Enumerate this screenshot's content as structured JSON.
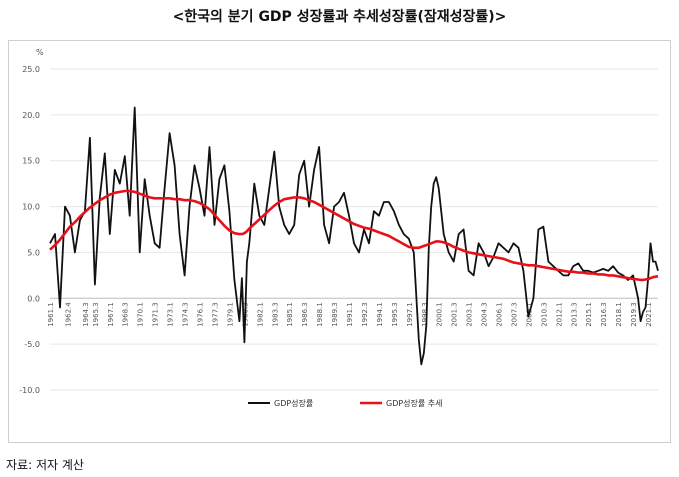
{
  "title": "<한국의 분기 GDP 성장률과 추세성장률(잠재성장률)>",
  "source": "자료: 저자 계산",
  "chart_data": {
    "type": "line",
    "title": "<한국의 분기 GDP 성장률과 추세성장률(잠재성장률)>",
    "ylabel": "%",
    "xlabel": "",
    "ylim": [
      -10,
      25
    ],
    "yticks": [
      "25.0",
      "20.0",
      "15.0",
      "10.0",
      "5.0",
      "0.0",
      "-5.0",
      "-10.0"
    ],
    "grid": true,
    "legend": "bottom-center",
    "x_tick_labels": [
      "1961.1",
      "1962.4",
      "1964.3",
      "1965.3",
      "1967.1",
      "1968.3",
      "1970.1",
      "1971.3",
      "1973.1",
      "1974.3",
      "1976.1",
      "1977.3",
      "1979.1",
      "1980.3",
      "1982.1",
      "1983.3",
      "1985.1",
      "1986.3",
      "1988.1",
      "1989.3",
      "1991.1",
      "1992.3",
      "1994.1",
      "1995.3",
      "1997.1",
      "1998.3",
      "2000.1",
      "2001.3",
      "2003.1",
      "2004.3",
      "2006.1",
      "2007.3",
      "2009.1",
      "2010.3",
      "2012.1",
      "2013.3",
      "2015.1",
      "2016.3",
      "2018.1",
      "2019.3",
      "2021.1"
    ],
    "x": [
      1961.0,
      1961.5,
      1962.0,
      1962.5,
      1963.0,
      1963.5,
      1964.0,
      1964.5,
      1965.0,
      1965.5,
      1966.0,
      1966.5,
      1967.0,
      1967.5,
      1968.0,
      1968.5,
      1969.0,
      1969.5,
      1970.0,
      1970.5,
      1971.0,
      1971.5,
      1972.0,
      1972.5,
      1973.0,
      1973.5,
      1974.0,
      1974.5,
      1975.0,
      1975.5,
      1976.0,
      1976.5,
      1977.0,
      1977.5,
      1978.0,
      1978.5,
      1979.0,
      1979.5,
      1980.0,
      1980.25,
      1980.5,
      1980.75,
      1981.0,
      1981.5,
      1982.0,
      1982.5,
      1983.0,
      1983.5,
      1984.0,
      1984.5,
      1985.0,
      1985.5,
      1986.0,
      1986.5,
      1987.0,
      1987.5,
      1988.0,
      1988.5,
      1989.0,
      1989.5,
      1990.0,
      1990.5,
      1991.0,
      1991.5,
      1992.0,
      1992.5,
      1993.0,
      1993.5,
      1994.0,
      1994.5,
      1995.0,
      1995.5,
      1996.0,
      1996.5,
      1997.0,
      1997.5,
      1998.0,
      1998.25,
      1998.5,
      1998.75,
      1999.0,
      1999.25,
      1999.5,
      1999.75,
      2000.0,
      2000.5,
      2001.0,
      2001.5,
      2002.0,
      2002.5,
      2003.0,
      2003.5,
      2004.0,
      2004.5,
      2005.0,
      2005.5,
      2006.0,
      2006.5,
      2007.0,
      2007.5,
      2008.0,
      2008.5,
      2009.0,
      2009.5,
      2010.0,
      2010.5,
      2011.0,
      2011.5,
      2012.0,
      2012.5,
      2013.0,
      2013.5,
      2014.0,
      2014.5,
      2015.0,
      2015.5,
      2016.0,
      2016.5,
      2017.0,
      2017.5,
      2018.0,
      2018.5,
      2019.0,
      2019.5,
      2020.0,
      2020.25,
      2020.5,
      2020.75,
      2021.0,
      2021.25,
      2021.5,
      2021.75,
      2022.0
    ],
    "series": [
      {
        "name": "GDP성장률",
        "color": "#111111",
        "values": [
          6.0,
          7.0,
          -1.0,
          10.0,
          9.0,
          5.0,
          8.5,
          9.5,
          17.5,
          1.5,
          11.0,
          15.8,
          7.0,
          14.0,
          12.5,
          15.5,
          9.0,
          20.8,
          5.0,
          13.0,
          9.0,
          6.0,
          5.5,
          12.0,
          18.0,
          14.5,
          7.0,
          2.5,
          10.0,
          14.5,
          12.0,
          9.0,
          16.5,
          8.0,
          13.0,
          14.5,
          9.5,
          2.0,
          -2.5,
          2.2,
          -4.8,
          4.0,
          6.0,
          12.5,
          9.0,
          8.0,
          12.0,
          16.0,
          10.0,
          8.0,
          7.0,
          8.0,
          13.5,
          15.0,
          10.0,
          14.0,
          16.5,
          8.0,
          6.0,
          10.0,
          10.5,
          11.5,
          9.0,
          6.0,
          5.0,
          7.5,
          6.0,
          9.5,
          9.0,
          10.5,
          10.5,
          9.5,
          8.0,
          7.0,
          6.5,
          5.0,
          -4.5,
          -7.2,
          -6.0,
          -3.0,
          5.5,
          10.0,
          12.5,
          13.2,
          12.0,
          7.0,
          5.0,
          4.0,
          7.0,
          7.5,
          3.0,
          2.5,
          6.0,
          5.0,
          3.5,
          4.5,
          6.0,
          5.5,
          5.0,
          6.0,
          5.5,
          3.0,
          -2.0,
          0.0,
          7.5,
          7.8,
          4.0,
          3.5,
          3.0,
          2.5,
          2.5,
          3.5,
          3.8,
          3.0,
          3.0,
          2.8,
          3.0,
          3.2,
          3.0,
          3.5,
          2.8,
          2.5,
          2.0,
          2.5,
          0.0,
          -2.5,
          -1.5,
          -1.0,
          2.0,
          6.0,
          4.0,
          4.0,
          3.0
        ]
      },
      {
        "name": "GDP성장률 추세",
        "color": "#e8101a",
        "values": [
          5.3,
          5.8,
          6.4,
          7.1,
          7.8,
          8.3,
          8.9,
          9.4,
          9.9,
          10.3,
          10.7,
          11.0,
          11.3,
          11.5,
          11.6,
          11.7,
          11.7,
          11.6,
          11.4,
          11.2,
          11.0,
          10.9,
          10.9,
          10.9,
          10.9,
          10.8,
          10.8,
          10.7,
          10.7,
          10.6,
          10.4,
          10.1,
          9.7,
          9.1,
          8.5,
          7.9,
          7.4,
          7.1,
          7.0,
          7.0,
          7.1,
          7.3,
          7.6,
          8.1,
          8.6,
          9.1,
          9.6,
          10.1,
          10.5,
          10.8,
          10.9,
          11.0,
          11.0,
          10.9,
          10.7,
          10.5,
          10.2,
          9.9,
          9.6,
          9.3,
          9.0,
          8.7,
          8.4,
          8.1,
          7.9,
          7.7,
          7.6,
          7.4,
          7.2,
          7.0,
          6.8,
          6.5,
          6.2,
          5.9,
          5.6,
          5.5,
          5.5,
          5.6,
          5.7,
          5.8,
          5.9,
          6.0,
          6.1,
          6.2,
          6.2,
          6.1,
          5.9,
          5.6,
          5.4,
          5.2,
          5.0,
          4.9,
          4.8,
          4.7,
          4.6,
          4.5,
          4.4,
          4.3,
          4.1,
          3.9,
          3.8,
          3.7,
          3.6,
          3.6,
          3.5,
          3.4,
          3.3,
          3.2,
          3.1,
          3.0,
          2.9,
          2.9,
          2.8,
          2.8,
          2.7,
          2.7,
          2.6,
          2.6,
          2.5,
          2.5,
          2.4,
          2.3,
          2.2,
          2.1,
          2.05,
          2.0,
          2.0,
          2.05,
          2.1,
          2.2,
          2.3,
          2.35,
          2.4
        ]
      }
    ]
  }
}
